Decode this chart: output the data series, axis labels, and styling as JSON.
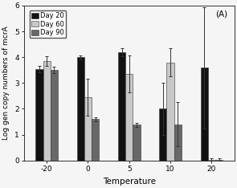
{
  "categories": [
    "-20",
    "0",
    "5",
    "10",
    "20"
  ],
  "bar_values": {
    "Day 20": [
      3.55,
      4.0,
      4.2,
      2.0,
      3.6
    ],
    "Day 60": [
      3.85,
      2.45,
      3.35,
      3.8,
      0.03
    ],
    "Day 90": [
      3.5,
      1.6,
      1.38,
      1.4,
      0.03
    ]
  },
  "bar_errors": {
    "Day 20": [
      0.12,
      0.08,
      0.15,
      1.0,
      2.35
    ],
    "Day 60": [
      0.18,
      0.72,
      0.72,
      0.55,
      0.05
    ],
    "Day 90": [
      0.12,
      0.08,
      0.08,
      0.85,
      0.05
    ]
  },
  "bar_colors": {
    "Day 20": "#111111",
    "Day 60": "#c8c8c8",
    "Day 90": "#686868"
  },
  "title": "(A)",
  "xlabel": "Temperature",
  "ylabel": "Log gen copy numbers of mcrA",
  "ylim": [
    0,
    6
  ],
  "yticks": [
    0,
    1,
    2,
    3,
    4,
    5,
    6
  ],
  "legend_labels": [
    "Day 20",
    "Day 60",
    "Day 90"
  ],
  "background_color": "#f5f5f5"
}
